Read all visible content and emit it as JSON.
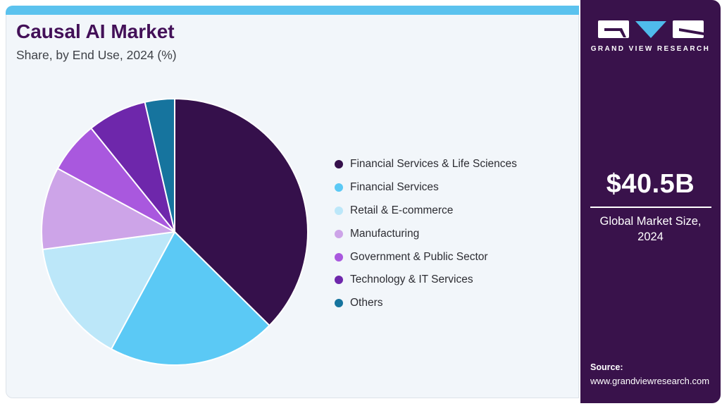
{
  "header": {
    "title": "Causal AI Market",
    "subtitle": "Share, by End Use, 2024 (%)"
  },
  "chart_data": {
    "type": "pie",
    "title": "Causal AI Market Share, by End Use, 2024 (%)",
    "value_unit": "percent",
    "start_angle_deg": 0,
    "direction": "clockwise",
    "legend_position": "right",
    "data_labels_shown": false,
    "slices": [
      {
        "label": "Financial Services & Life Sciences",
        "value": 37.4,
        "color": "#35104B"
      },
      {
        "label": "Financial Services",
        "value": 20.5,
        "color": "#5BC9F5"
      },
      {
        "label": "Retail & E-commerce",
        "value": 15.0,
        "color": "#BCE7F9"
      },
      {
        "label": "Manufacturing",
        "value": 10.0,
        "color": "#CDA4E8"
      },
      {
        "label": "Government & Public Sector",
        "value": 6.3,
        "color": "#A958DE"
      },
      {
        "label": "Technology & IT Services",
        "value": 7.2,
        "color": "#6E27AB"
      },
      {
        "label": "Others",
        "value": 3.6,
        "color": "#16749E"
      }
    ]
  },
  "sidebar": {
    "background_color": "#39124B",
    "logo": {
      "brand_text": "GRAND VIEW RESEARCH",
      "triangle_color": "#4FBBEB"
    },
    "market_size": {
      "value": "$40.5B",
      "label_line1": "Global Market Size,",
      "label_line2": "2024"
    },
    "source": {
      "label": "Source:",
      "url": "www.grandviewresearch.com"
    }
  },
  "theme": {
    "topbar_color": "#5BC2EE",
    "card_background": "#F2F6FA",
    "title_color": "#431058",
    "subtitle_color": "#3F4248",
    "legend_text_color": "#2D2D33"
  }
}
